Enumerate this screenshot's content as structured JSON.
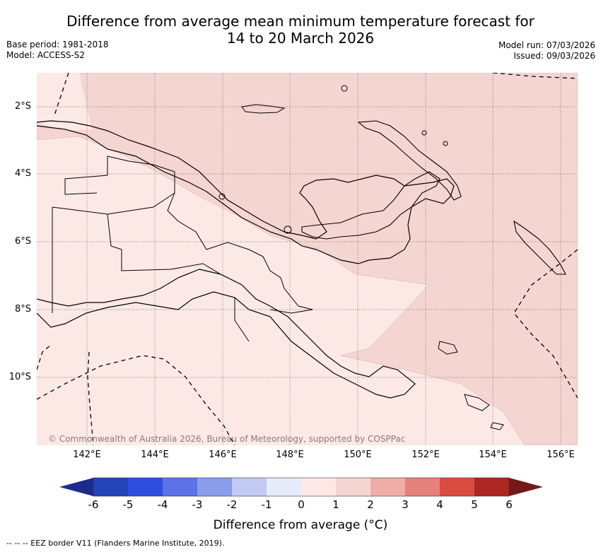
{
  "title": {
    "line1": "Difference from average mean minimum temperature forecast for",
    "line2": "14 to 20 March 2026"
  },
  "meta_left": {
    "base_period": "Base period: 1981-2018",
    "model": "Model: ACCESS-S2"
  },
  "meta_right": {
    "model_run": "Model run: 07/03/2026",
    "issued": "Issued: 09/03/2026"
  },
  "map": {
    "lat_labels": [
      "2°S",
      "4°S",
      "6°S",
      "8°S",
      "10°S"
    ],
    "lon_labels": [
      "142°E",
      "144°E",
      "146°E",
      "148°E",
      "150°E",
      "152°E",
      "154°E",
      "156°E"
    ],
    "copyright": "© Commonwealth of Australia 2026, Bureau of Meteorology, supported by COSPPac",
    "colors": {
      "land_fill": "#fce9e6",
      "warm_fill": "#f5d5d1",
      "coast": "#000000",
      "grid": "#555555"
    }
  },
  "colorbar": {
    "ticks": [
      "-6",
      "-5",
      "-4",
      "-3",
      "-2",
      "-1",
      "0",
      "1",
      "2",
      "3",
      "4",
      "5",
      "6"
    ],
    "colors": [
      "#1b2c8c",
      "#2343b8",
      "#2f4ee0",
      "#5c72e6",
      "#8a9ded",
      "#c2c9f4",
      "#e6ebfa",
      "#fce9e6",
      "#f5d5d1",
      "#f0aca6",
      "#e6807a",
      "#da4b40",
      "#ae2722",
      "#721a17"
    ],
    "label": "Difference from average (°C)"
  },
  "footnote": "-- -- -- EEZ border V11 (Flanders Marine Institute, 2019)."
}
